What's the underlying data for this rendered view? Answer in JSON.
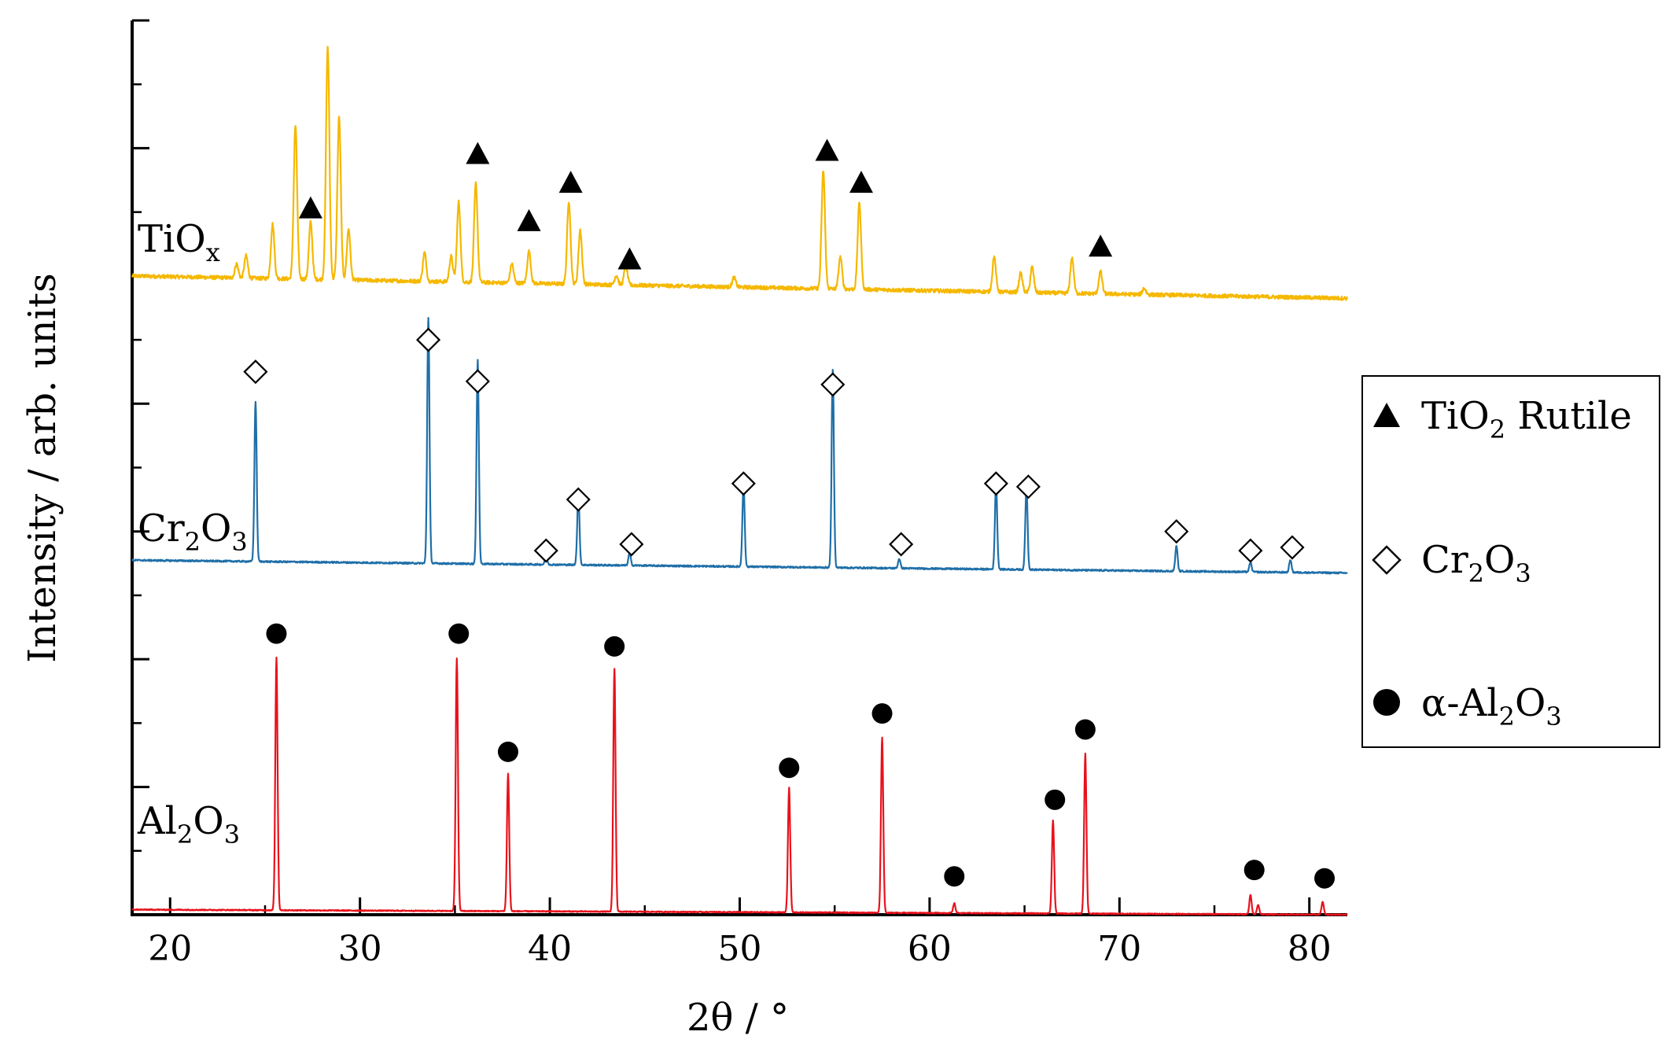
{
  "chart_data": {
    "type": "line",
    "title": "",
    "xlabel": "2θ / °",
    "ylabel": "Intensity / arb. units",
    "xlim": [
      18,
      82
    ],
    "ylim": [
      0,
      14
    ],
    "xticks": [
      20,
      30,
      40,
      50,
      60,
      70,
      80
    ],
    "grid": false,
    "legend_position": "right",
    "series": [
      {
        "name": "TiOx",
        "label_main": "TiO",
        "label_sub": "x",
        "color": "#F5B800",
        "baseline": 10.0,
        "baseline_end": 9.65,
        "peaks": [
          [
            23.5,
            0.22
          ],
          [
            24.0,
            0.35
          ],
          [
            25.4,
            0.85
          ],
          [
            26.6,
            2.4
          ],
          [
            27.4,
            0.9
          ],
          [
            28.3,
            3.65
          ],
          [
            28.9,
            2.55
          ],
          [
            29.4,
            0.8
          ],
          [
            33.4,
            0.45
          ],
          [
            34.8,
            0.4
          ],
          [
            35.2,
            1.25
          ],
          [
            36.1,
            1.55
          ],
          [
            38.0,
            0.3
          ],
          [
            38.9,
            0.5
          ],
          [
            41.0,
            1.3
          ],
          [
            41.6,
            0.85
          ],
          [
            43.5,
            0.15
          ],
          [
            44.0,
            0.3
          ],
          [
            49.7,
            0.15
          ],
          [
            54.4,
            1.85
          ],
          [
            55.3,
            0.5
          ],
          [
            56.3,
            1.35
          ],
          [
            63.4,
            0.55
          ],
          [
            64.8,
            0.3
          ],
          [
            65.4,
            0.4
          ],
          [
            67.5,
            0.55
          ],
          [
            69.0,
            0.35
          ],
          [
            71.3,
            0.1
          ]
        ],
        "markers": [
          [
            27.4,
            11.05
          ],
          [
            36.2,
            11.9
          ],
          [
            38.9,
            10.85
          ],
          [
            41.1,
            11.45
          ],
          [
            44.2,
            10.25
          ],
          [
            54.6,
            11.95
          ],
          [
            56.4,
            11.45
          ],
          [
            69.0,
            10.45
          ]
        ]
      },
      {
        "name": "Cr2O3",
        "label_main": "Cr",
        "label_sub_1": "2",
        "label_mid": "O",
        "label_sub_2": "3",
        "color": "#1F6FA8",
        "baseline": 5.55,
        "baseline_end": 5.35,
        "peaks": [
          [
            24.5,
            2.5
          ],
          [
            33.6,
            3.85
          ],
          [
            36.2,
            3.2
          ],
          [
            39.8,
            0.15
          ],
          [
            41.5,
            1.1
          ],
          [
            44.2,
            0.2
          ],
          [
            50.2,
            1.3
          ],
          [
            54.9,
            3.1
          ],
          [
            58.4,
            0.15
          ],
          [
            63.5,
            1.35
          ],
          [
            65.1,
            1.3
          ],
          [
            73.0,
            0.4
          ],
          [
            76.9,
            0.15
          ],
          [
            79.0,
            0.2
          ]
        ],
        "markers": [
          [
            24.5,
            8.5
          ],
          [
            33.6,
            9.0
          ],
          [
            36.2,
            8.35
          ],
          [
            39.8,
            5.7
          ],
          [
            41.5,
            6.5
          ],
          [
            44.3,
            5.8
          ],
          [
            50.2,
            6.75
          ],
          [
            54.9,
            8.3
          ],
          [
            58.5,
            5.8
          ],
          [
            63.5,
            6.75
          ],
          [
            65.2,
            6.7
          ],
          [
            73.0,
            6.0
          ],
          [
            76.9,
            5.7
          ],
          [
            79.1,
            5.75
          ]
        ]
      },
      {
        "name": "Al2O3",
        "label_main": "Al",
        "label_sub_1": "2",
        "label_mid": "O",
        "label_sub_2": "3",
        "color": "#E8121C",
        "baseline": 0.08,
        "baseline_end": 0.0,
        "peaks": [
          [
            25.6,
            3.95
          ],
          [
            35.1,
            3.95
          ],
          [
            37.8,
            2.15
          ],
          [
            43.4,
            3.8
          ],
          [
            52.6,
            1.95
          ],
          [
            57.5,
            2.75
          ],
          [
            61.3,
            0.15
          ],
          [
            66.5,
            1.45
          ],
          [
            68.2,
            2.5
          ],
          [
            76.9,
            0.3
          ],
          [
            77.3,
            0.15
          ],
          [
            80.7,
            0.2
          ]
        ],
        "markers": [
          [
            25.6,
            4.4
          ],
          [
            35.2,
            4.4
          ],
          [
            37.8,
            2.55
          ],
          [
            43.4,
            4.2
          ],
          [
            52.6,
            2.3
          ],
          [
            57.5,
            3.15
          ],
          [
            61.3,
            0.6
          ],
          [
            66.6,
            1.8
          ],
          [
            68.2,
            2.9
          ],
          [
            77.1,
            0.7
          ],
          [
            80.8,
            0.57
          ]
        ]
      }
    ],
    "legend": [
      {
        "symbol": "filled-triangle",
        "text_main": "TiO",
        "text_sub": "2",
        "text_rest": " Rutile"
      },
      {
        "symbol": "open-diamond",
        "text_main": "Cr",
        "text_sub_1": "2",
        "text_mid": "O",
        "text_sub_2": "3"
      },
      {
        "symbol": "filled-circle",
        "text_main": "α-Al",
        "text_sub_1": "2",
        "text_mid": "O",
        "text_sub_2": "3"
      }
    ]
  }
}
